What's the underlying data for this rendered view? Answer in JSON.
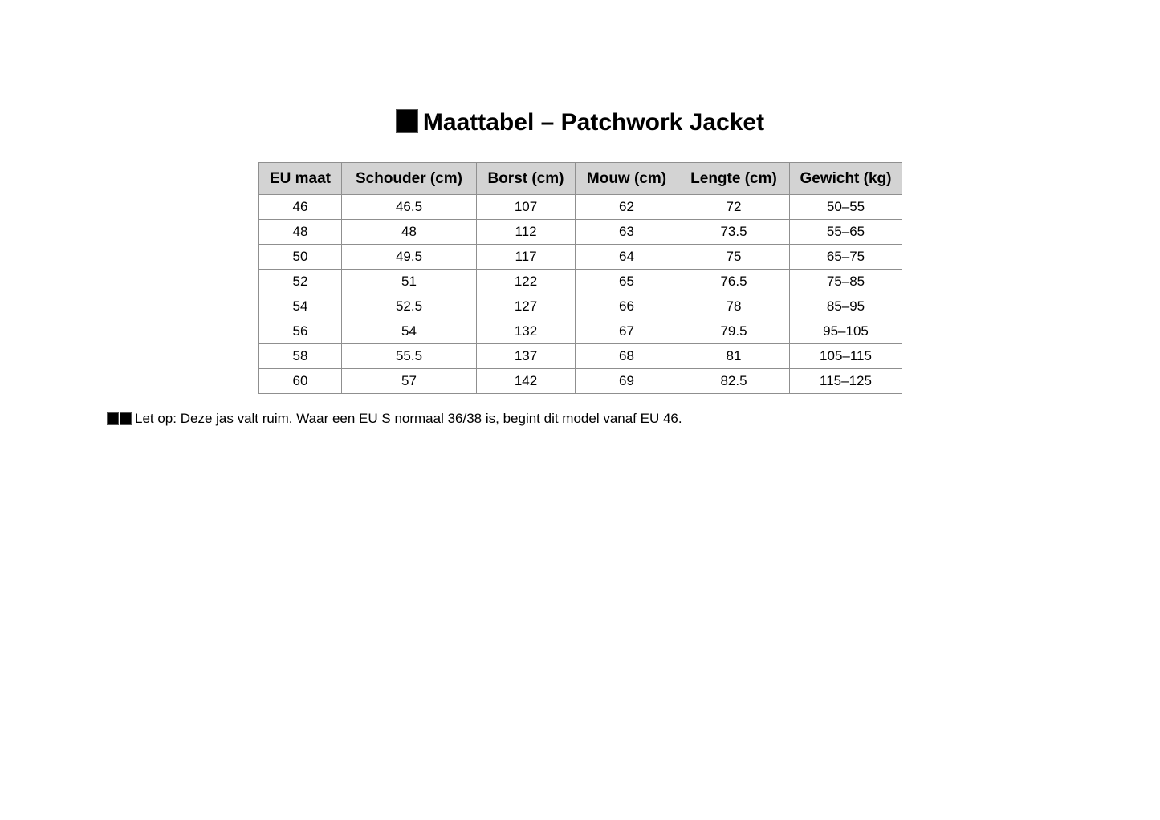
{
  "title": {
    "icon": "black-square-missing-glyph",
    "text": "Maattabel – Patchwork Jacket"
  },
  "table": {
    "headers": [
      "EU maat",
      "Schouder (cm)",
      "Borst (cm)",
      "Mouw (cm)",
      "Lengte (cm)",
      "Gewicht (kg)"
    ],
    "rows": [
      [
        "46",
        "46.5",
        "107",
        "62",
        "72",
        "50–55"
      ],
      [
        "48",
        "48",
        "112",
        "63",
        "73.5",
        "55–65"
      ],
      [
        "50",
        "49.5",
        "117",
        "64",
        "75",
        "65–75"
      ],
      [
        "52",
        "51",
        "122",
        "65",
        "76.5",
        "75–85"
      ],
      [
        "54",
        "52.5",
        "127",
        "66",
        "78",
        "85–95"
      ],
      [
        "56",
        "54",
        "132",
        "67",
        "79.5",
        "95–105"
      ],
      [
        "58",
        "55.5",
        "137",
        "68",
        "81",
        "105–115"
      ],
      [
        "60",
        "57",
        "142",
        "69",
        "82.5",
        "115–125"
      ]
    ]
  },
  "note": {
    "icon": "double-black-square-missing-glyph",
    "text": "Let op: Deze jas valt ruim. Waar een EU S normaal 36/38 is, begint dit model vanaf EU 46."
  },
  "colors": {
    "background": "#ffffff",
    "text": "#000000",
    "header_bg": "#d3d3d3",
    "border": "#8f8f8f"
  }
}
